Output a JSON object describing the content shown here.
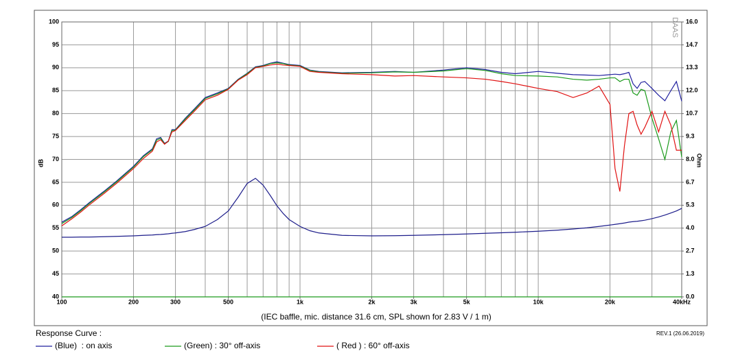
{
  "chart_data": {
    "type": "line",
    "xscale": "log",
    "caption": "(IEC baffle, mic. distance 31.6 cm, SPL shown for 2.83 V / 1 m)",
    "legend_title": "Response Curve :",
    "revision": "REV.1 (26.06.2019)",
    "watermark": "DAAS",
    "ylabel": "dB",
    "y2label": "Ohm",
    "grid": true,
    "xlim": [
      100,
      40000
    ],
    "ylim": [
      40,
      100
    ],
    "y2lim": [
      0,
      16
    ],
    "xticks": [
      100,
      200,
      300,
      500,
      {
        "value": 1000,
        "label": "1k"
      },
      {
        "value": 2000,
        "label": "2k"
      },
      {
        "value": 3000,
        "label": "3k"
      },
      {
        "value": 5000,
        "label": "5k"
      },
      {
        "value": 10000,
        "label": "10k"
      },
      {
        "value": 20000,
        "label": "20k"
      },
      {
        "value": 40000,
        "label": "40kHz"
      }
    ],
    "xgrid": [
      100,
      200,
      300,
      400,
      500,
      600,
      700,
      800,
      900,
      1000,
      2000,
      3000,
      4000,
      5000,
      6000,
      7000,
      8000,
      9000,
      10000,
      20000,
      30000,
      40000
    ],
    "yticks": [
      40,
      45,
      50,
      55,
      60,
      65,
      70,
      75,
      80,
      85,
      90,
      95,
      100
    ],
    "y2ticks": [
      {
        "value": 0,
        "label": "0.0"
      },
      {
        "value": 1.333,
        "label": "1.3"
      },
      {
        "value": 2.667,
        "label": "2.7"
      },
      {
        "value": 4,
        "label": "4.0"
      },
      {
        "value": 5.333,
        "label": "5.3"
      },
      {
        "value": 6.667,
        "label": "6.7"
      },
      {
        "value": 8,
        "label": "8.0"
      },
      {
        "value": 9.333,
        "label": "9.3"
      },
      {
        "value": 10.667,
        "label": "10.7"
      },
      {
        "value": 12,
        "label": "12.0"
      },
      {
        "value": 13.333,
        "label": "13.3"
      },
      {
        "value": 14.667,
        "label": "14.7"
      },
      {
        "value": 16,
        "label": "16.0"
      }
    ],
    "x": [
      100,
      110,
      120,
      130,
      150,
      170,
      200,
      220,
      240,
      250,
      260,
      270,
      280,
      290,
      300,
      330,
      360,
      400,
      450,
      500,
      550,
      600,
      650,
      700,
      750,
      800,
      850,
      900,
      1000,
      1100,
      1200,
      1500,
      2000,
      2500,
      3000,
      4000,
      5000,
      6000,
      7000,
      8000,
      10000,
      12000,
      14000,
      16000,
      18000,
      20000,
      21000,
      22000,
      23000,
      24000,
      25000,
      26000,
      27000,
      28000,
      30000,
      32000,
      34000,
      36000,
      38000,
      40000
    ],
    "series": [
      {
        "name": "(Blue)  : on axis",
        "color": "#1f1f9e",
        "values": [
          56.3,
          57.5,
          59,
          60.5,
          63,
          65.3,
          68.5,
          70.8,
          72.3,
          74.5,
          74.8,
          73.5,
          74,
          76.5,
          76.5,
          79,
          81,
          83.5,
          84.5,
          85.5,
          87.5,
          88.8,
          90.2,
          90.5,
          91,
          91.3,
          91,
          90.7,
          90.5,
          89.5,
          89.2,
          88.9,
          89,
          89.2,
          89,
          89.5,
          90,
          89.6,
          89,
          88.7,
          89.2,
          88.8,
          88.5,
          88.4,
          88.3,
          88.5,
          88.6,
          88.5,
          88.7,
          89,
          86.5,
          85.5,
          86.8,
          87,
          85.5,
          84,
          82.8,
          85,
          87,
          82.7
        ]
      },
      {
        "name": "(Green) : 30° off-axis",
        "color": "#1a9a1a",
        "values": [
          56,
          57.3,
          58.8,
          60.3,
          62.8,
          65.1,
          68.3,
          70.6,
          72.1,
          74.2,
          74.6,
          73.4,
          73.9,
          76.3,
          76.4,
          78.8,
          80.8,
          83.3,
          84.3,
          85.4,
          87.4,
          88.7,
          90.1,
          90.4,
          90.9,
          91.1,
          90.9,
          90.6,
          90.4,
          89.4,
          89.1,
          88.8,
          88.9,
          89.1,
          89,
          89.3,
          89.8,
          89.4,
          88.7,
          88.3,
          88.2,
          88,
          87.5,
          87.3,
          87.5,
          87.8,
          87.8,
          87,
          87.5,
          87.5,
          84.5,
          84,
          85.3,
          85,
          79,
          74.5,
          70,
          76,
          78.5,
          70.5
        ]
      },
      {
        "name": "( Red ) : 60° off-axis",
        "color": "#e01010",
        "values": [
          55.5,
          57,
          58.5,
          60,
          62.5,
          64.8,
          68,
          70.2,
          71.8,
          73.8,
          74.3,
          73.3,
          74,
          76,
          76.3,
          78.5,
          80.5,
          83,
          84,
          85.3,
          87.3,
          88.5,
          90,
          90.3,
          90.6,
          90.8,
          90.6,
          90.5,
          90.3,
          89.2,
          89,
          88.7,
          88.5,
          88.2,
          88.3,
          88,
          87.8,
          87.5,
          87,
          86.5,
          85.5,
          84.8,
          83.5,
          84.5,
          86,
          82,
          68,
          63,
          73,
          80,
          80.5,
          77.5,
          75.5,
          77,
          80.5,
          76,
          80.5,
          77.5,
          72,
          72
        ]
      },
      {
        "color": "#1c1c8a",
        "axis": "y2",
        "values": [
          3.47,
          3.47,
          3.48,
          3.48,
          3.5,
          3.52,
          3.55,
          3.58,
          3.6,
          3.62,
          3.63,
          3.65,
          3.67,
          3.7,
          3.72,
          3.8,
          3.92,
          4.1,
          4.5,
          5.0,
          5.8,
          6.6,
          6.9,
          6.5,
          5.9,
          5.3,
          4.85,
          4.5,
          4.1,
          3.85,
          3.72,
          3.58,
          3.55,
          3.56,
          3.58,
          3.62,
          3.66,
          3.7,
          3.73,
          3.76,
          3.82,
          3.88,
          3.95,
          4.02,
          4.1,
          4.18,
          4.22,
          4.26,
          4.3,
          4.35,
          4.38,
          4.4,
          4.43,
          4.46,
          4.55,
          4.65,
          4.76,
          4.88,
          5.0,
          5.15
        ]
      }
    ]
  }
}
